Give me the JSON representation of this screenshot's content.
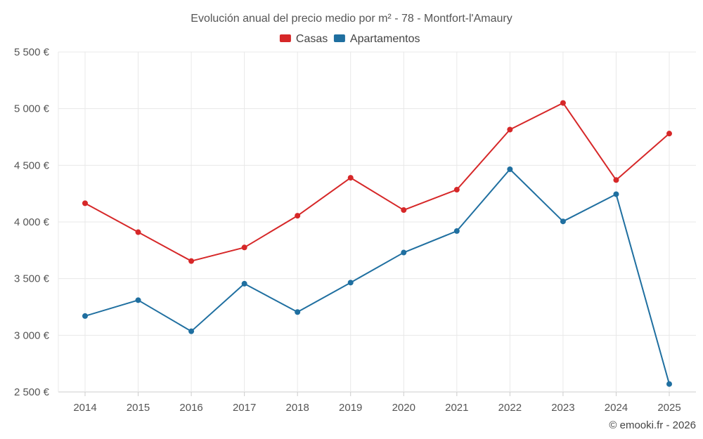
{
  "chart_data": {
    "type": "line",
    "title": "Evolución anual del precio medio por m² - 78 - Montfort-l'Amaury",
    "categories": [
      "2014",
      "2015",
      "2016",
      "2017",
      "2018",
      "2019",
      "2020",
      "2021",
      "2022",
      "2023",
      "2024",
      "2025"
    ],
    "series": [
      {
        "name": "Casas",
        "color": "#d62728",
        "values": [
          4165,
          3910,
          3655,
          3775,
          4055,
          4390,
          4105,
          4285,
          4815,
          5050,
          4370,
          4780
        ]
      },
      {
        "name": "Apartamentos",
        "color": "#1f6fa0",
        "values": [
          3170,
          3310,
          3035,
          3455,
          3205,
          3465,
          3730,
          3920,
          4465,
          4005,
          4245,
          2570
        ]
      }
    ],
    "ylim": [
      2500,
      5500
    ],
    "yticks": [
      2500,
      3000,
      3500,
      4000,
      4500,
      5000,
      5500
    ],
    "ytick_labels": [
      "2 500 €",
      "3 000 €",
      "3 500 €",
      "4 000 €",
      "4 500 €",
      "5 000 €",
      "5 500 €"
    ],
    "xlabel": "",
    "ylabel": "",
    "grid": true,
    "legend": "top-center"
  },
  "footer": {
    "copyright": "© emooki.fr - 2026"
  }
}
